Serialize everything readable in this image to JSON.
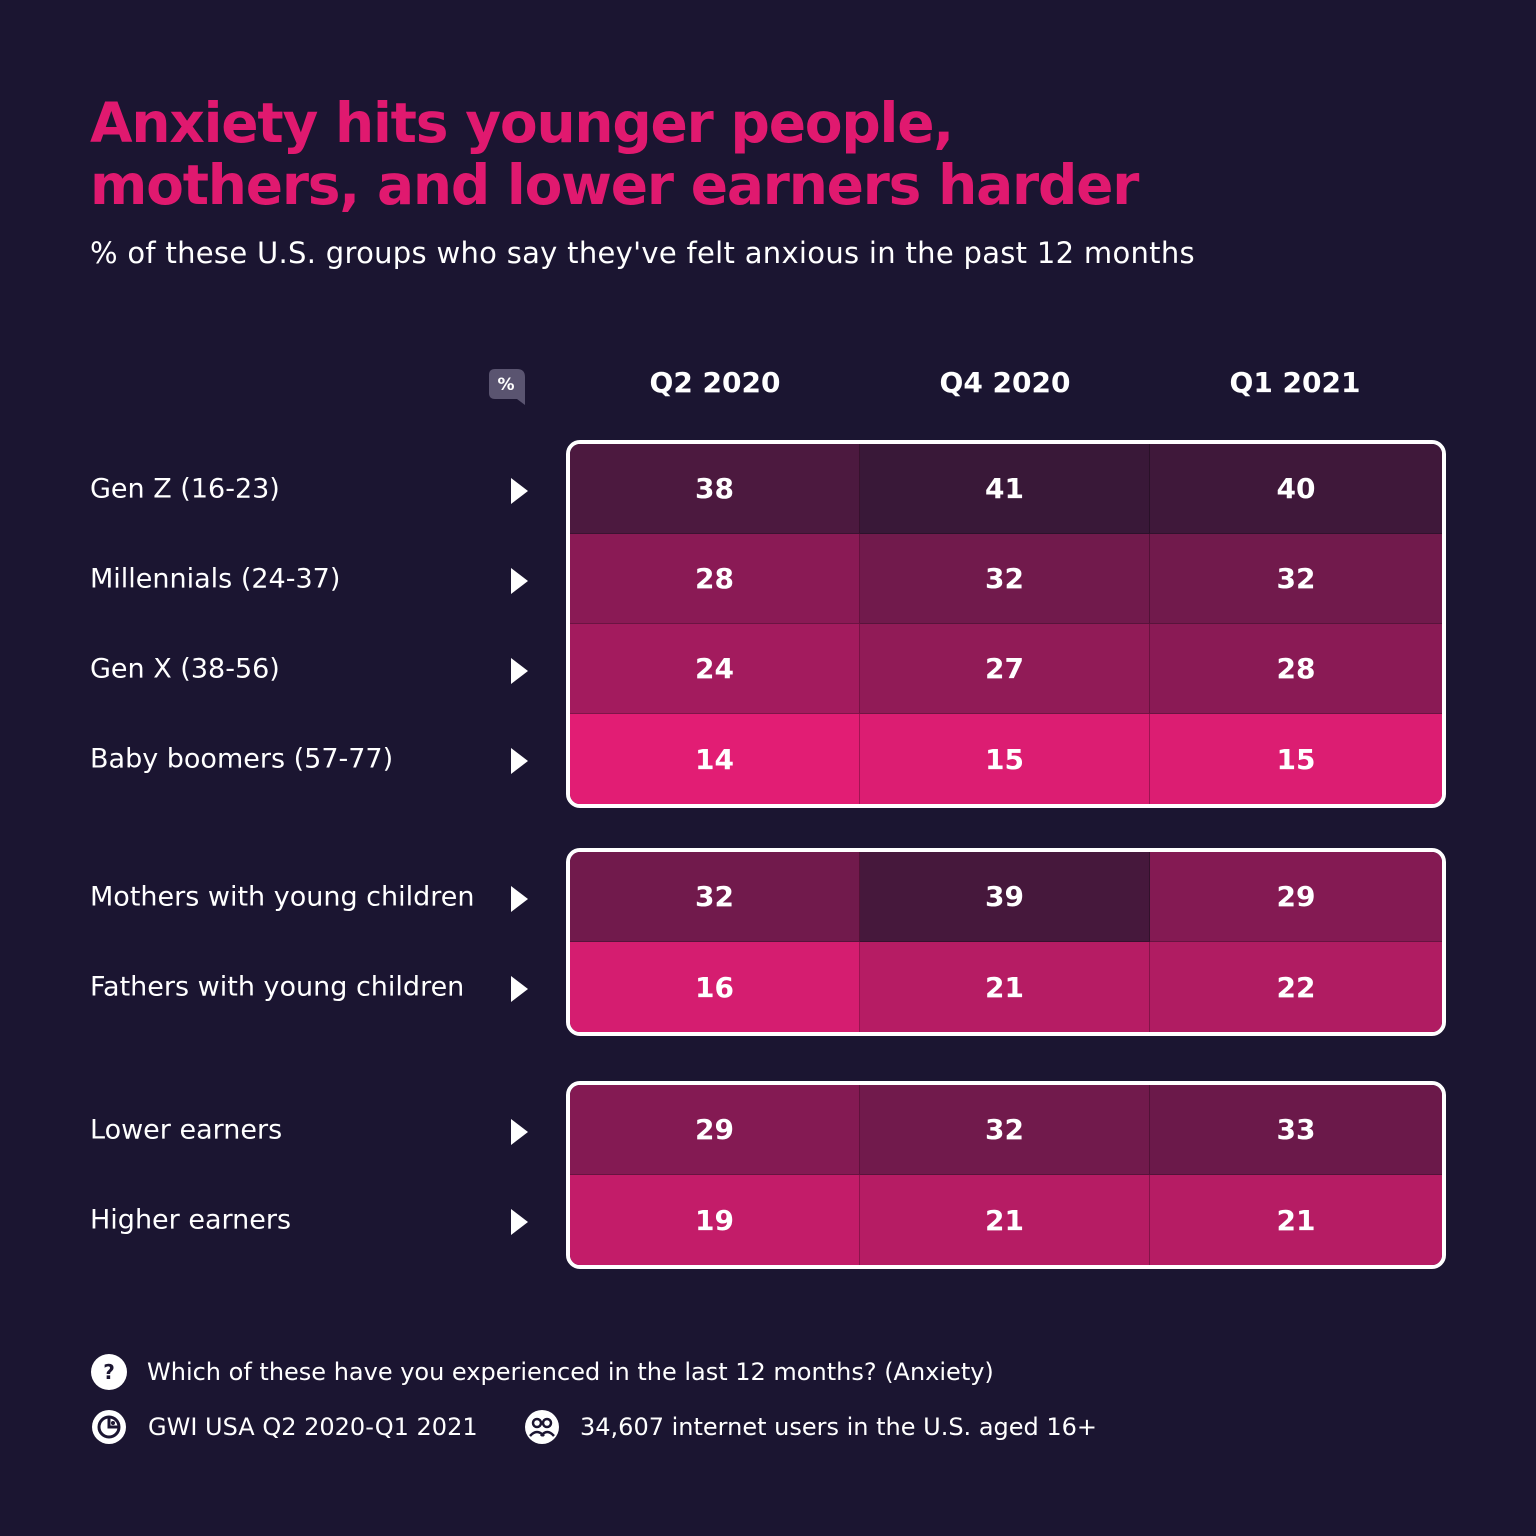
{
  "header": {
    "title_line1": "Anxiety hits younger people,",
    "title_line2": "mothers, and lower earners harder",
    "subtitle": "% of these U.S. groups who say they've felt anxious in the past 12 months"
  },
  "unit_icon": "percent-icon",
  "chart_data": {
    "type": "heatmap",
    "title": "Anxiety hits younger people, mothers, and lower earners harder",
    "subtitle": "% of these U.S. groups who say they've felt anxious in the past 12 months",
    "columns": [
      "Q2 2020",
      "Q4 2020",
      "Q1 2021"
    ],
    "groups": [
      {
        "rows": [
          {
            "label": "Gen Z (16-23)",
            "values": [
              38,
              41,
              40
            ]
          },
          {
            "label": "Millennials (24-37)",
            "values": [
              28,
              32,
              32
            ]
          },
          {
            "label": "Gen X (38-56)",
            "values": [
              24,
              27,
              28
            ]
          },
          {
            "label": "Baby boomers (57-77)",
            "values": [
              14,
              15,
              15
            ]
          }
        ]
      },
      {
        "rows": [
          {
            "label": "Mothers with young children",
            "values": [
              32,
              39,
              29
            ]
          },
          {
            "label": "Fathers with young children",
            "values": [
              16,
              21,
              22
            ]
          }
        ]
      },
      {
        "rows": [
          {
            "label": "Lower earners",
            "values": [
              29,
              32,
              33
            ]
          },
          {
            "label": "Higher earners",
            "values": [
              19,
              21,
              21
            ]
          }
        ]
      }
    ],
    "color_scale": {
      "low": "#e21d74",
      "high": "#391838"
    }
  },
  "footer": {
    "question": "Which of these have you experienced in the last 12 months? (Anxiety)",
    "question_icon": "question-icon",
    "source": "GWI USA Q2 2020-Q1 2021",
    "source_icon": "gwi-logo-icon",
    "sample": "34,607 internet users in the U.S. aged 16+",
    "sample_icon": "users-icon"
  },
  "colors": {
    "background": "#1b1531",
    "accent": "#e0196f"
  }
}
